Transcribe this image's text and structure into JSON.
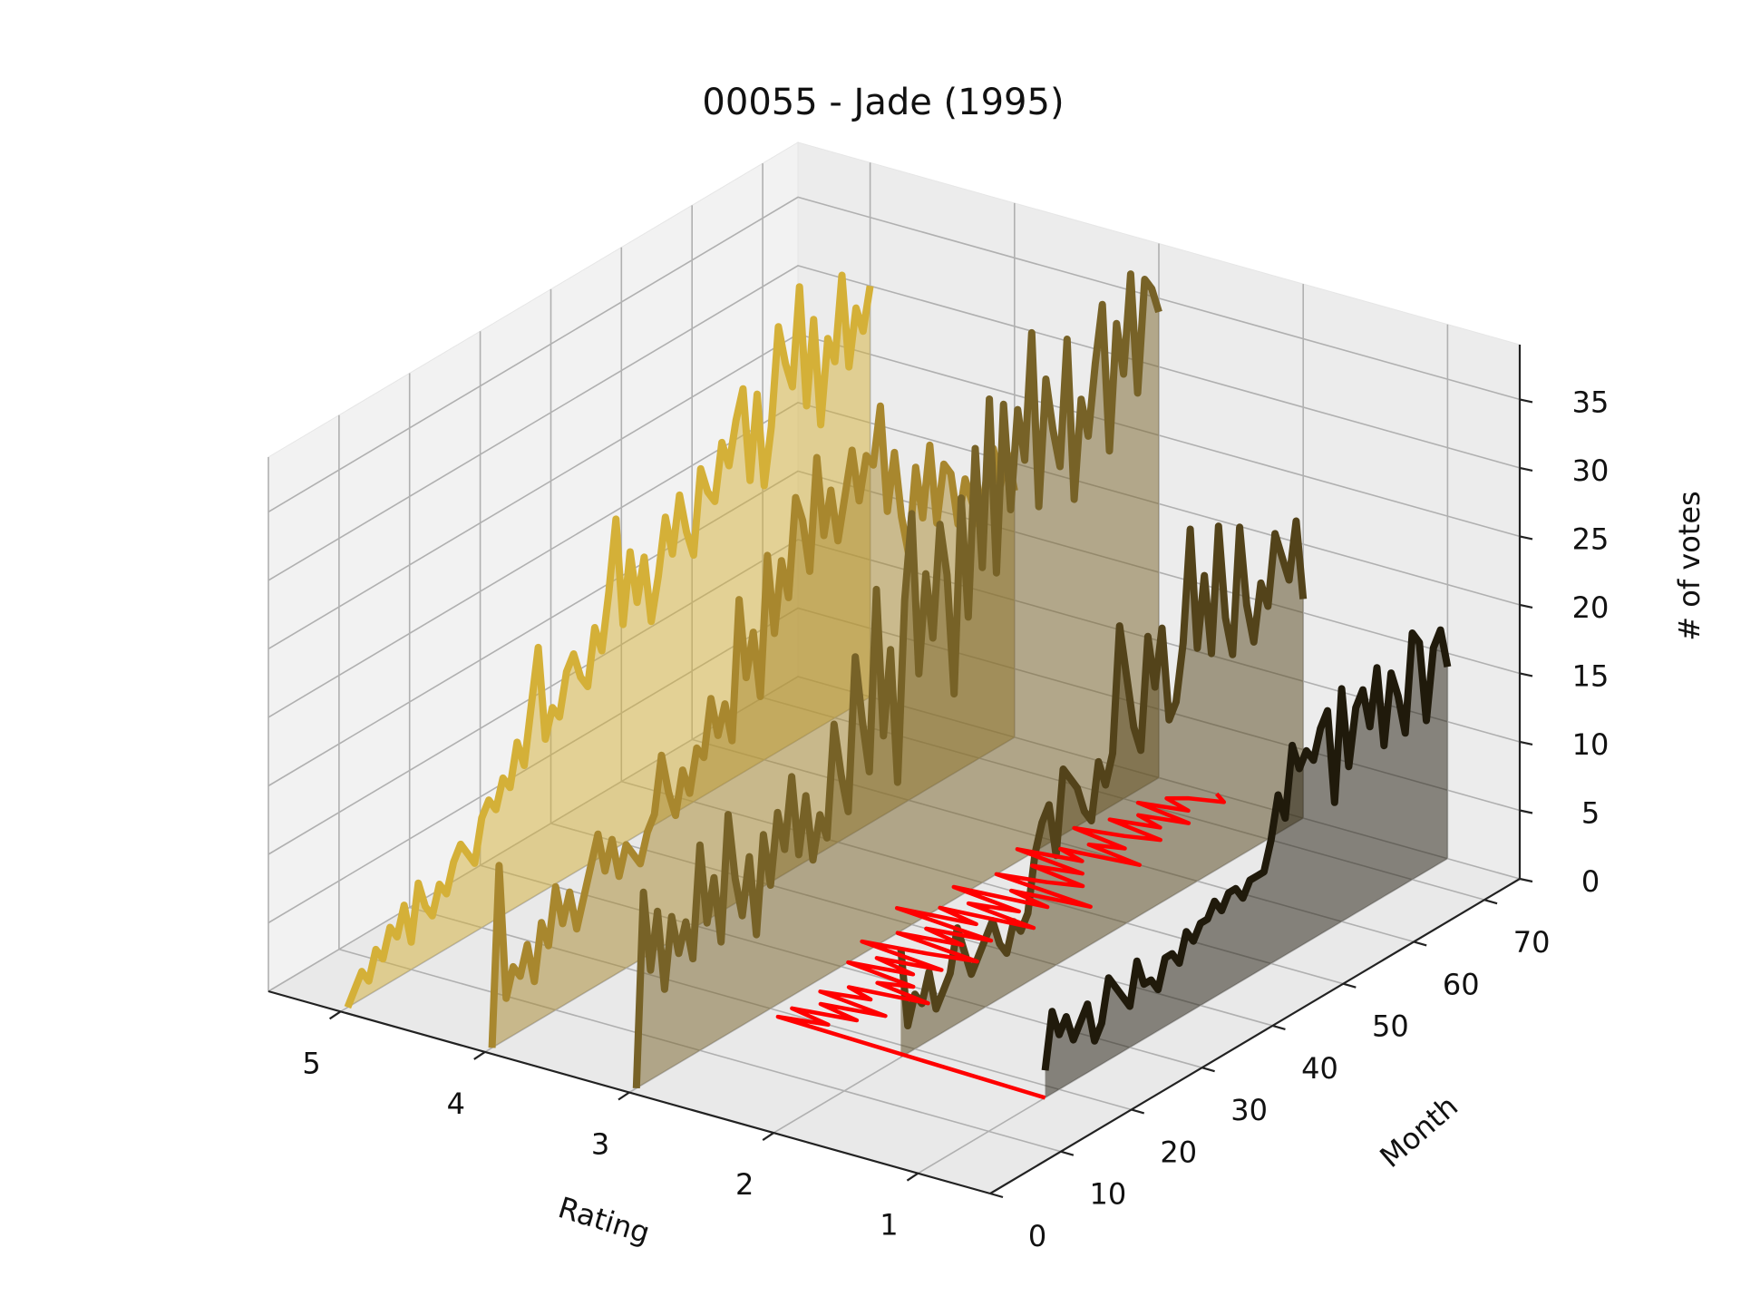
{
  "chart_data": {
    "type": "line",
    "projection": "3d",
    "title": "00055 - Jade (1995)",
    "xlabel": "Rating",
    "ylabel": "Month",
    "zlabel": "# of votes",
    "x_ticks": [
      "1",
      "2",
      "3",
      "4",
      "5"
    ],
    "y_ticks": [
      "0",
      "10",
      "20",
      "30",
      "40",
      "50",
      "60",
      "70"
    ],
    "z_ticks": [
      "0",
      "5",
      "10",
      "15",
      "20",
      "25",
      "30",
      "35"
    ],
    "xlim": [
      0.5,
      5.5
    ],
    "ylim": [
      0,
      75
    ],
    "zlim": [
      0,
      39
    ],
    "grid": true,
    "fill_under": true,
    "series": [
      {
        "rating": 1,
        "color": "#201a0b",
        "months": [
          18,
          19,
          20,
          21,
          22,
          23,
          24,
          25,
          26,
          27,
          28,
          29,
          30,
          31,
          32,
          33,
          34,
          35,
          36,
          37,
          38,
          39,
          40,
          41,
          42,
          43,
          44,
          45,
          46,
          47,
          48,
          49,
          50,
          51,
          52,
          53,
          54,
          55,
          56,
          57,
          58,
          59,
          60,
          61,
          62,
          63,
          64,
          65,
          66,
          67,
          68,
          69,
          70,
          71,
          72,
          73,
          74,
          75
        ],
        "values": [
          2,
          6,
          4,
          5,
          3,
          4,
          5,
          2,
          3,
          6,
          5,
          4,
          3,
          6,
          4,
          4,
          3,
          5,
          5,
          4,
          6,
          5,
          6,
          6,
          7,
          6,
          7,
          7,
          6,
          7,
          7,
          7,
          9,
          12,
          10,
          15,
          13,
          14,
          13,
          15,
          16,
          9,
          17,
          11,
          15,
          16,
          13,
          17,
          11,
          16,
          14,
          11,
          18,
          17,
          11,
          16,
          17,
          14
        ]
      },
      {
        "rating": 2,
        "color": "#53431a",
        "months": [
          18,
          19,
          20,
          21,
          22,
          23,
          24,
          25,
          26,
          27,
          28,
          29,
          30,
          31,
          32,
          33,
          34,
          35,
          36,
          37,
          38,
          39,
          40,
          41,
          42,
          43,
          44,
          45,
          46,
          47,
          48,
          49,
          50,
          51,
          52,
          53,
          54,
          55,
          56,
          57,
          58,
          59,
          60,
          61,
          62,
          63,
          64,
          65,
          66,
          67,
          68,
          69,
          70,
          71,
          72,
          73,
          74,
          75
        ],
        "values": [
          8,
          2,
          4,
          3,
          5,
          2,
          3,
          4,
          7,
          5,
          3,
          4,
          5,
          6,
          4,
          3,
          5,
          4,
          5,
          9,
          11,
          12,
          8,
          14,
          13,
          12,
          10,
          9,
          13,
          11,
          13,
          22,
          18,
          14,
          12,
          20,
          16,
          20,
          13,
          14,
          18,
          26,
          17,
          22,
          16,
          25,
          18,
          15,
          24,
          18,
          15,
          19,
          17,
          22,
          20,
          18,
          22,
          16
        ]
      },
      {
        "rating": 3,
        "color": "#776227",
        "months": [
          1,
          2,
          3,
          4,
          5,
          6,
          7,
          8,
          9,
          10,
          11,
          12,
          13,
          14,
          15,
          16,
          17,
          18,
          19,
          20,
          21,
          22,
          23,
          24,
          25,
          26,
          27,
          28,
          29,
          30,
          31,
          32,
          33,
          34,
          35,
          36,
          37,
          38,
          39,
          40,
          41,
          42,
          43,
          44,
          45,
          46,
          47,
          48,
          49,
          50,
          51,
          52,
          53,
          54,
          55,
          56,
          57,
          58,
          59,
          60,
          61,
          62,
          63,
          64,
          65,
          66,
          67,
          68,
          69,
          70,
          71,
          72,
          73,
          74,
          75
        ],
        "values": [
          0,
          14,
          8,
          12,
          6,
          11,
          8,
          10,
          7,
          15,
          9,
          12,
          7,
          16,
          11,
          8,
          12,
          6,
          13,
          9,
          14,
          11,
          16,
          10,
          14,
          9,
          12,
          10,
          18,
          14,
          11,
          22,
          17,
          13,
          26,
          15,
          21,
          11,
          24,
          30,
          18,
          25,
          20,
          28,
          24,
          15,
          29,
          20,
          32,
          23,
          35,
          22,
          34,
          26,
          33,
          29,
          38,
          25,
          34,
          30,
          27,
          36,
          24,
          31,
          28,
          33,
          37,
          26,
          35,
          31,
          38,
          29,
          37,
          36,
          34
        ]
      },
      {
        "rating": 4,
        "color": "#a8872e",
        "months": [
          1,
          2,
          3,
          4,
          5,
          6,
          7,
          8,
          9,
          10,
          11,
          12,
          13,
          14,
          15,
          16,
          17,
          18,
          19,
          20,
          21,
          22,
          23,
          24,
          25,
          26,
          27,
          28,
          29,
          30,
          31,
          32,
          33,
          34,
          35,
          36,
          37,
          38,
          39,
          40,
          41,
          42,
          43,
          44,
          45,
          46,
          47,
          48,
          49,
          50,
          51,
          52,
          53,
          54,
          55,
          56,
          57,
          58,
          59,
          60,
          61,
          62,
          63,
          64,
          65,
          66,
          67,
          68,
          69,
          70,
          71,
          72,
          73,
          74,
          75
        ],
        "values": [
          0,
          13,
          3,
          5,
          4,
          6,
          3,
          7,
          5,
          9,
          6,
          8,
          5,
          7,
          9,
          11,
          8,
          10,
          7,
          9,
          8,
          7,
          9,
          10,
          14,
          11,
          9,
          12,
          10,
          13,
          12,
          16,
          13,
          15,
          12,
          22,
          16,
          19,
          14,
          24,
          18,
          23,
          20,
          27,
          25,
          21,
          29,
          23,
          26,
          22,
          25,
          28,
          24,
          27,
          26,
          30,
          22,
          26,
          21,
          18,
          24,
          20,
          25,
          19,
          23,
          22,
          18,
          21,
          19,
          17,
          20,
          22,
          19,
          21,
          18
        ]
      },
      {
        "rating": 5,
        "color": "#d4b038",
        "months": [
          1,
          2,
          3,
          4,
          5,
          6,
          7,
          8,
          9,
          10,
          11,
          12,
          13,
          14,
          15,
          16,
          17,
          18,
          19,
          20,
          21,
          22,
          23,
          24,
          25,
          26,
          27,
          28,
          29,
          30,
          31,
          32,
          33,
          34,
          35,
          36,
          37,
          38,
          39,
          40,
          41,
          42,
          43,
          44,
          45,
          46,
          47,
          48,
          49,
          50,
          51,
          52,
          53,
          54,
          55,
          56,
          57,
          58,
          59,
          60,
          61,
          62,
          63,
          64,
          65,
          66,
          67,
          68,
          69,
          70,
          71,
          72,
          73,
          74,
          75
        ],
        "values": [
          0,
          1,
          2,
          1,
          3,
          2,
          4,
          3,
          5,
          2,
          6,
          4,
          3,
          5,
          4,
          6,
          7,
          6,
          5,
          8,
          9,
          8,
          10,
          9,
          12,
          10,
          14,
          18,
          11,
          13,
          12,
          15,
          16,
          14,
          13,
          17,
          15,
          19,
          24,
          16,
          21,
          17,
          20,
          15,
          18,
          22,
          19,
          23,
          20,
          18,
          24,
          22,
          21,
          25,
          23,
          26,
          28,
          21,
          27,
          20,
          24,
          31,
          28,
          26,
          33,
          24,
          30,
          22,
          28,
          26,
          32,
          25,
          29,
          27,
          30
        ]
      }
    ],
    "mean_line": {
      "color": "#ff0000",
      "months": [
        18,
        19,
        20,
        21,
        22,
        23,
        24,
        25,
        26,
        27,
        28,
        29,
        30,
        31,
        32,
        33,
        34,
        35,
        36,
        37,
        38,
        39,
        40,
        41,
        42,
        43,
        44,
        45,
        46,
        47,
        48,
        49,
        50,
        51,
        52,
        53,
        54,
        55,
        56,
        57,
        58,
        59,
        60,
        61,
        62,
        63,
        64,
        65,
        66,
        67,
        68,
        69,
        70,
        71,
        72,
        73,
        74,
        75
      ],
      "ratings": [
        1.0,
        2.9,
        2.6,
        2.9,
        2.5,
        2.8,
        2.4,
        2.9,
        2.6,
        2.8,
        2.3,
        2.7,
        2.5,
        3.0,
        2.6,
        2.9,
        2.5,
        3.1,
        2.7,
        2.4,
        3.0,
        2.6,
        2.9,
        2.5,
        3.2,
        2.7,
        3.0,
        2.4,
        2.9,
        2.6,
        3.1,
        2.5,
        2.8,
        2.3,
        3.0,
        2.7,
        2.5,
        2.9,
        2.6,
        3.1,
        2.7,
        2.9,
        2.4,
        2.8,
        2.6,
        3.0,
        2.7,
        2.5,
        2.9,
        2.6,
        2.8,
        2.5,
        2.9,
        2.6,
        2.8,
        2.7,
        2.5,
        2.6
      ]
    }
  }
}
